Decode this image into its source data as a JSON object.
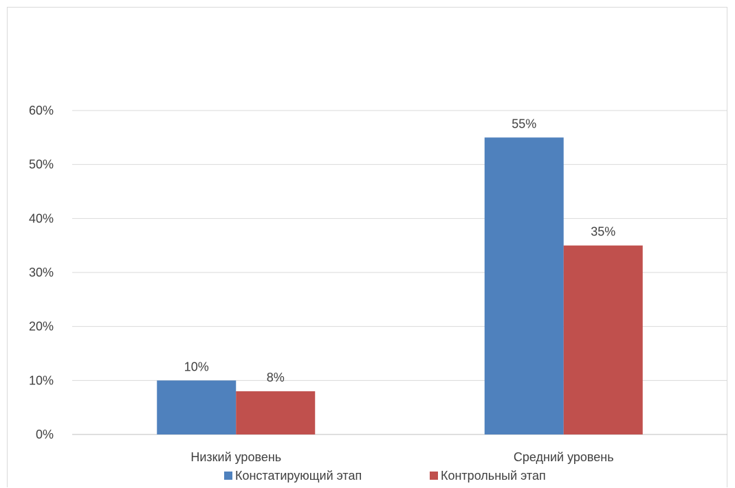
{
  "chart_data": {
    "type": "bar",
    "categories": [
      "Низкий уровень",
      "Средний уровень"
    ],
    "series": [
      {
        "name": "Констатирующий этап",
        "values": [
          10,
          55
        ],
        "labels": [
          "10%",
          "55%"
        ]
      },
      {
        "name": "Контрольный этап",
        "values": [
          8,
          35
        ],
        "labels": [
          "8%",
          "35%"
        ]
      }
    ],
    "ylim": [
      0,
      60
    ],
    "yticks": [
      "0%",
      "10%",
      "20%",
      "30%",
      "40%",
      "50%",
      "60%"
    ],
    "grid": true,
    "legend_position": "bottom",
    "colors": [
      "#4f81bd",
      "#c0504d"
    ],
    "gridline_color": "#d9d9d9",
    "axis_color": "#bfbfbf"
  }
}
